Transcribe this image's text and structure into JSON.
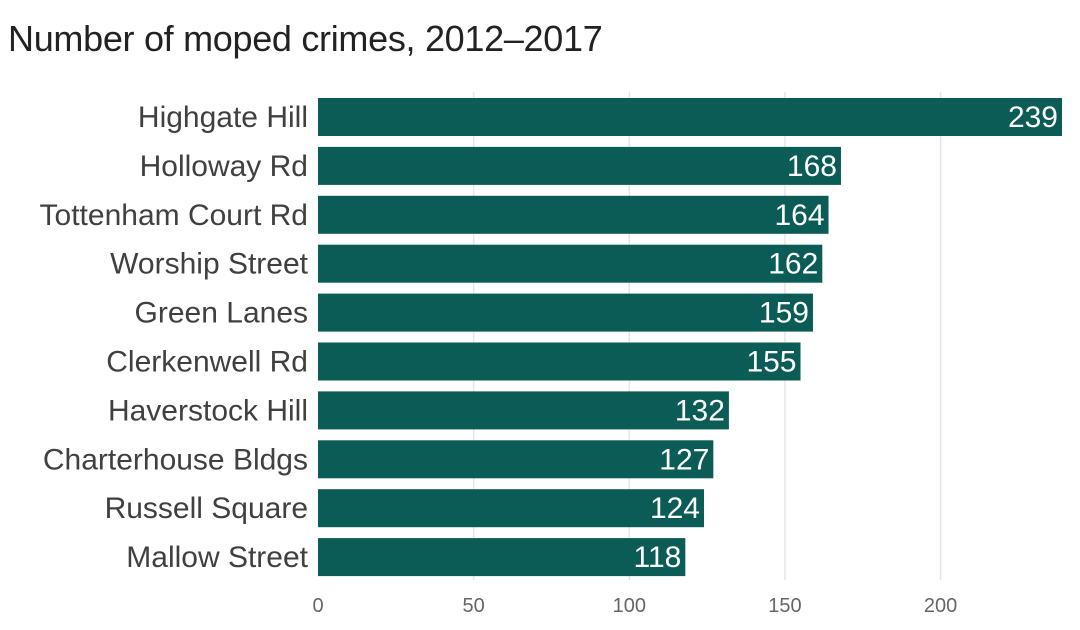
{
  "chart_data": {
    "type": "bar",
    "orientation": "horizontal",
    "title": "Number of moped crimes, 2012–2017",
    "xlabel": "",
    "ylabel": "",
    "categories": [
      "Highgate Hill",
      "Holloway Rd",
      "Tottenham Court Rd",
      "Worship Street",
      "Green Lanes",
      "Clerkenwell Rd",
      "Haverstock Hill",
      "Charterhouse Bldgs",
      "Russell Square",
      "Mallow Street"
    ],
    "values": [
      239,
      168,
      164,
      162,
      159,
      155,
      132,
      127,
      124,
      118
    ],
    "x_ticks": [
      0,
      50,
      100,
      150,
      200
    ],
    "xlim": [
      0,
      239
    ],
    "grid": true,
    "data_labels": true,
    "bar_color": "#0b5c56",
    "grid_color": "#e6e6e6",
    "text_color": "#404040"
  }
}
